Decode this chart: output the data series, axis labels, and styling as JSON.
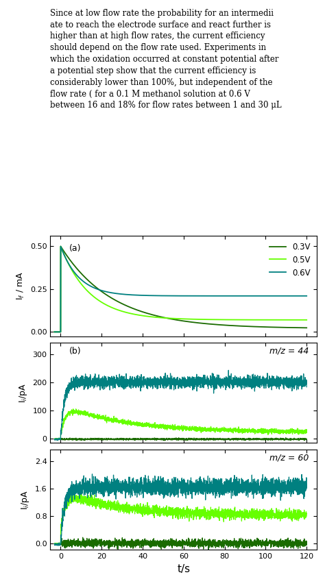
{
  "colors": {
    "dark_green": "#1a6b00",
    "light_green": "#66ff00",
    "teal": "#008080"
  },
  "legend_labels": [
    "0.3V",
    "0.5V",
    "0.6V"
  ],
  "panel_a_label": "(a)",
  "panel_b_label": "(b)",
  "panel_a_ylabel": "I$_f$ / mA",
  "panel_b_ylabel": "I$_i$/pA",
  "panel_c_ylabel": "I$_i$/pA",
  "xlabel": "t/s",
  "panel_a_yticks": [
    0.0,
    0.25,
    0.5
  ],
  "panel_a_yticklabels": [
    "0.00",
    "0.25",
    "0.50"
  ],
  "panel_b_yticks": [
    0,
    100,
    200,
    300
  ],
  "panel_b_yticklabels": [
    "0",
    "100",
    "200",
    "300"
  ],
  "panel_c_yticks": [
    0.0,
    0.8,
    1.6,
    2.4
  ],
  "panel_c_yticklabels": [
    "0.0",
    "0.8",
    "1.6",
    "2.4"
  ],
  "xlim": [
    -5,
    125
  ],
  "xticks": [
    0,
    20,
    40,
    60,
    80,
    100,
    120
  ],
  "xticklabels": [
    "0",
    "20",
    "40",
    "60",
    "80",
    "100",
    "120"
  ],
  "panel_a_ylim": [
    -0.025,
    0.56
  ],
  "panel_b_ylim": [
    -15,
    340
  ],
  "panel_c_ylim": [
    -0.18,
    2.75
  ],
  "mz44_label": "m/z = 44",
  "mz60_label": "m/z = 60",
  "seed": 42,
  "text_lines": [
    "Since at low flow rate the probability for an intermedii",
    "ate to reach the electrode surface and react further is",
    "higher than at high flow rates, the current efficiency",
    "should depend on the flow rate used. Experiments in",
    "which the oxidation occurred at constant potential after",
    "a potential step show that the current efficiency is",
    "considerably lower than 100%, but independent of the",
    "flow rate ( for a 0.1 M methanol solution at 0.6 V",
    "between 16 and 18% for flow rates between 1 and 30 μL"
  ]
}
